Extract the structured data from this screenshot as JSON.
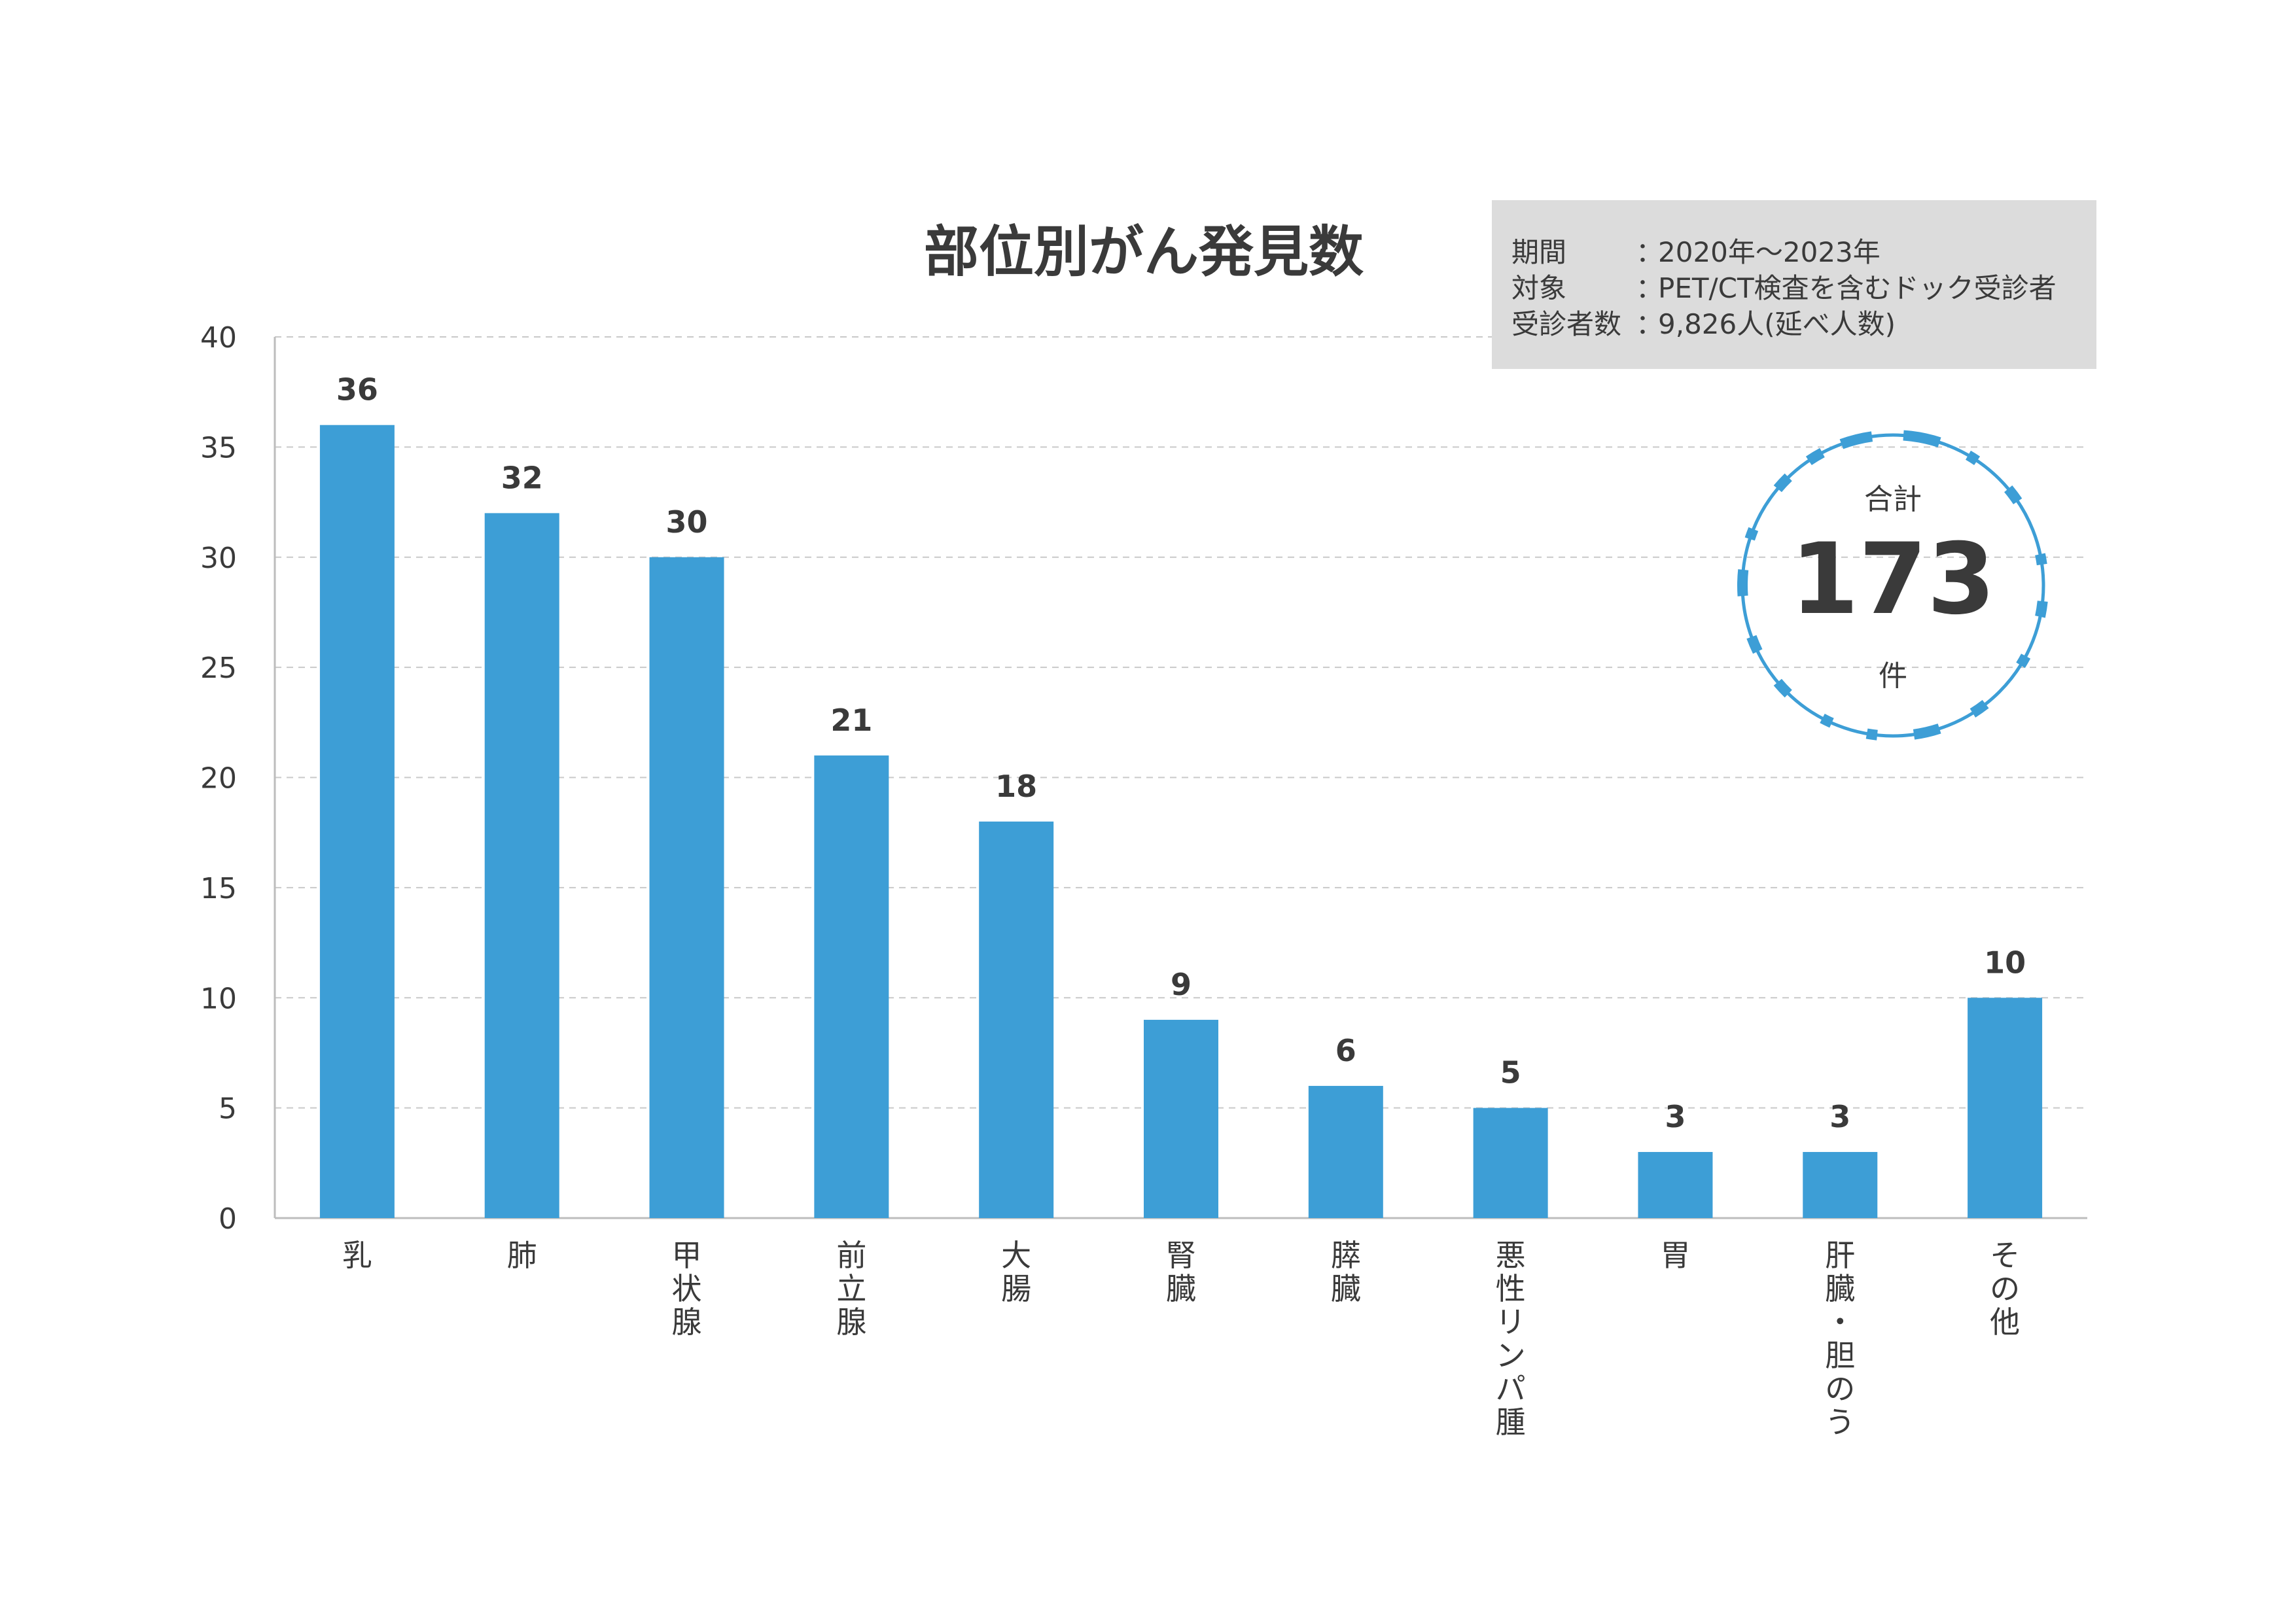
{
  "chart_data": {
    "type": "bar",
    "title": "部位別がん発見数",
    "categories": [
      "乳",
      "肺",
      "甲状腺",
      "前立腺",
      "大腸",
      "腎臓",
      "膵臓",
      "悪性リンパ腫",
      "胃",
      "肝臓・胆のう",
      "その他"
    ],
    "values": [
      36,
      32,
      30,
      21,
      18,
      9,
      6,
      5,
      3,
      3,
      10
    ],
    "ylim": [
      0,
      40
    ],
    "yticks": [
      0,
      5,
      10,
      15,
      20,
      25,
      30,
      35,
      40
    ],
    "grid": "horizontal dashed",
    "bar_color": "#3d9ed6",
    "xlabel": "",
    "ylabel": ""
  },
  "info": {
    "rows": [
      {
        "label": "期間",
        "sep": "：",
        "value": "2020年〜2023年"
      },
      {
        "label": "対象",
        "sep": "：",
        "value": "PET/CT検査を含むドック受診者"
      },
      {
        "label": "受診者数",
        "sep": "：",
        "value": "9,826人(延べ人数)"
      }
    ]
  },
  "total": {
    "label": "合計",
    "value": "173",
    "unit": "件",
    "ring_color": "#3d9ed6"
  }
}
